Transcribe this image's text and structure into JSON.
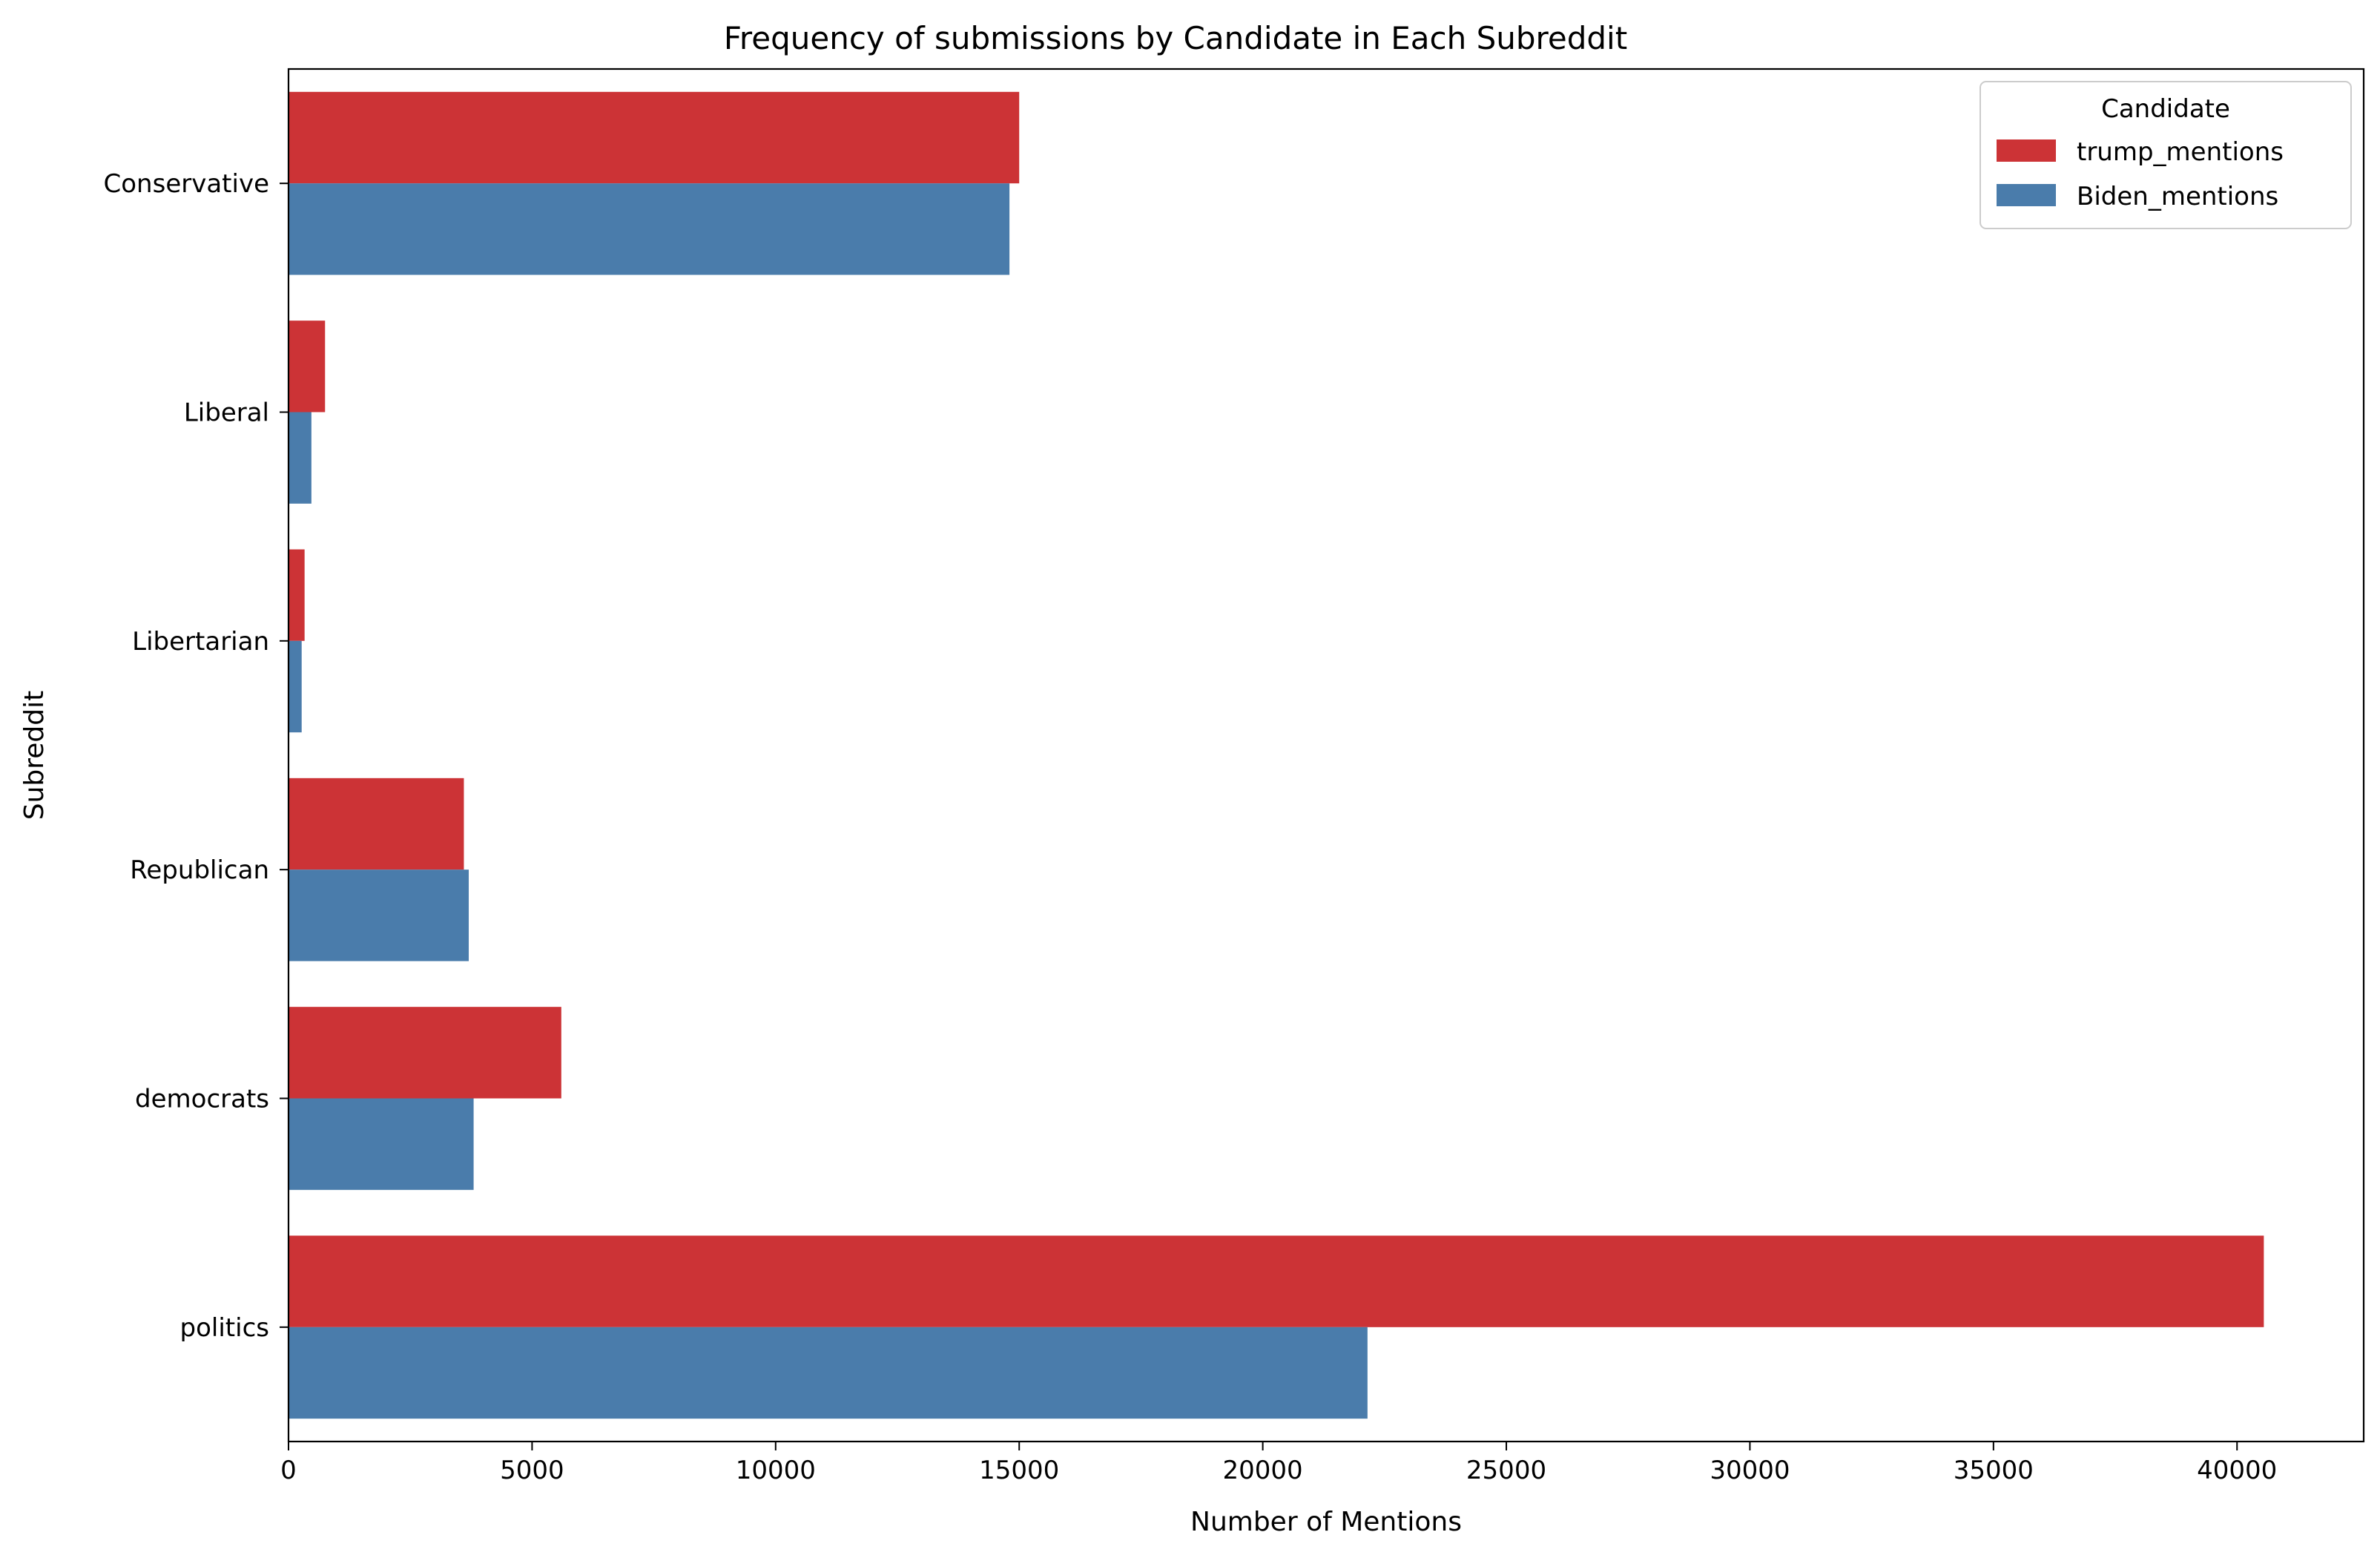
{
  "chart_data": {
    "type": "bar",
    "orientation": "horizontal",
    "title": "Frequency of submissions by Candidate in Each Subreddit",
    "xlabel": "Number of Mentions",
    "ylabel": "Subreddit",
    "categories": [
      "Conservative",
      "Liberal",
      "Libertarian",
      "Republican",
      "democrats",
      "politics"
    ],
    "series": [
      {
        "name": "trump_mentions",
        "color": "#cc3336",
        "values": [
          15000,
          750,
          330,
          3600,
          5600,
          40550
        ]
      },
      {
        "name": "Biden_mentions",
        "color": "#4a7cab",
        "values": [
          14800,
          470,
          270,
          3700,
          3800,
          22150
        ]
      }
    ],
    "xlim": [
      0,
      42600
    ],
    "xticks": [
      0,
      5000,
      10000,
      15000,
      20000,
      25000,
      30000,
      35000,
      40000
    ],
    "grid": false,
    "legend": {
      "title": "Candidate",
      "placement": "top-right"
    }
  }
}
